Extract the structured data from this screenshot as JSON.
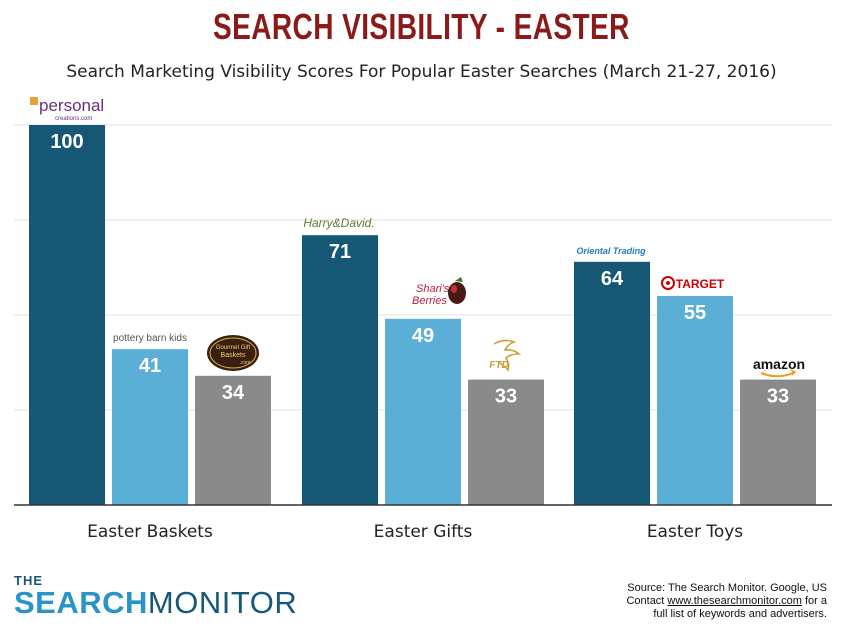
{
  "title": "SEARCH VISIBILITY - EASTER",
  "subtitle": "Search Marketing Visibility Scores For Popular Easter Searches (March 21-27, 2016)",
  "colors": {
    "dark": "#165775",
    "light": "#5bafd6",
    "gray": "#8a8a8a",
    "title": "#8b1a1a"
  },
  "chart_data": {
    "type": "bar",
    "ylim": [
      0,
      100
    ],
    "grid": true,
    "groups": [
      {
        "category": "Easter Baskets",
        "bars": [
          {
            "advertiser": "personal creations.com",
            "value": 100,
            "color": "dark"
          },
          {
            "advertiser": "pottery barn kids",
            "value": 41,
            "color": "light"
          },
          {
            "advertiser": "Gourmet Gift Baskets.com",
            "value": 34,
            "color": "gray"
          }
        ]
      },
      {
        "category": "Easter Gifts",
        "bars": [
          {
            "advertiser": "Harry & David",
            "value": 71,
            "color": "dark"
          },
          {
            "advertiser": "Shari's Berries",
            "value": 49,
            "color": "light"
          },
          {
            "advertiser": "FTD",
            "value": 33,
            "color": "gray"
          }
        ]
      },
      {
        "category": "Easter Toys",
        "bars": [
          {
            "advertiser": "Oriental Trading",
            "value": 64,
            "color": "dark"
          },
          {
            "advertiser": "TARGET",
            "value": 55,
            "color": "light"
          },
          {
            "advertiser": "amazon",
            "value": 33,
            "color": "gray"
          }
        ]
      }
    ]
  },
  "logos": {
    "personal": "personal",
    "personal_sub": "creations.com",
    "pbk": "pottery barn kids",
    "ggb_1": "Gourmet Gift",
    "ggb_2": "Baskets",
    "ggb_3": ".com",
    "harry": "Harry&David.",
    "shari_1": "Shari's",
    "shari_2": "Berries",
    "ftd": "FTD",
    "oriental": "Oriental Trading",
    "target": "TARGET",
    "amazon": "amazon"
  },
  "brand": {
    "the": "THE",
    "search": "SEARCH",
    "monitor": "MONITOR"
  },
  "source": {
    "line1": "Source: The Search Monitor. Google, US",
    "line2_pre": "Contact ",
    "line2_link": "www.thesearchmonitor.com",
    "line2_post": " for a",
    "line3": "full list of keywords and advertisers."
  }
}
